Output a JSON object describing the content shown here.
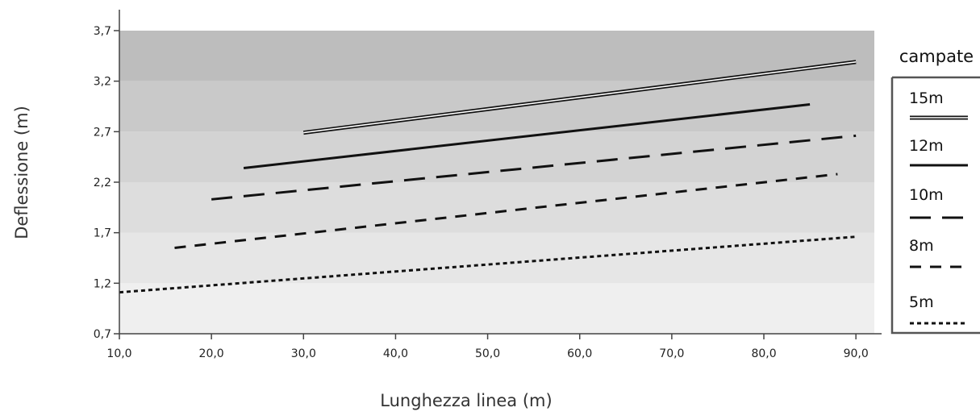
{
  "chart_data": {
    "type": "line",
    "xlabel": "Lunghezza linea (m)",
    "ylabel": "Deflessione (m)",
    "xlim": [
      10,
      92
    ],
    "ylim": [
      0.7,
      3.7
    ],
    "x_ticks": [
      10,
      20,
      30,
      40,
      50,
      60,
      70,
      80,
      90
    ],
    "x_tick_labels": [
      "10,0",
      "20,0",
      "30,0",
      "40,0",
      "50,0",
      "60,0",
      "70,0",
      "80,0",
      "90,0"
    ],
    "y_ticks": [
      0.7,
      1.2,
      1.7,
      2.2,
      2.7,
      3.2,
      3.7
    ],
    "y_tick_labels": [
      "0,7",
      "1,2",
      "1,7",
      "2,2",
      "2,7",
      "3,2",
      "3,7"
    ],
    "grid": false,
    "background_bands": [
      {
        "from": 0.7,
        "to": 1.2,
        "color": "#efefef"
      },
      {
        "from": 1.2,
        "to": 1.7,
        "color": "#e6e6e6"
      },
      {
        "from": 1.7,
        "to": 2.2,
        "color": "#dddddd"
      },
      {
        "from": 2.2,
        "to": 2.7,
        "color": "#d3d3d3"
      },
      {
        "from": 2.7,
        "to": 3.2,
        "color": "#c9c9c9"
      },
      {
        "from": 3.2,
        "to": 3.7,
        "color": "#bdbdbd"
      }
    ],
    "legend": {
      "title": "campate",
      "placement": "right"
    },
    "series": [
      {
        "name": "15m",
        "style": "double",
        "x": [
          30,
          90
        ],
        "y": [
          2.69,
          3.39
        ]
      },
      {
        "name": "12m",
        "style": "solid",
        "x": [
          23.5,
          85
        ],
        "y": [
          2.34,
          2.97
        ]
      },
      {
        "name": "10m",
        "style": "long-dash",
        "x": [
          20,
          90
        ],
        "y": [
          2.03,
          2.66
        ]
      },
      {
        "name": "8m",
        "style": "dash",
        "x": [
          16,
          88
        ],
        "y": [
          1.55,
          2.28
        ]
      },
      {
        "name": "5m",
        "style": "dot",
        "x": [
          10,
          90
        ],
        "y": [
          1.11,
          1.66
        ]
      }
    ]
  }
}
